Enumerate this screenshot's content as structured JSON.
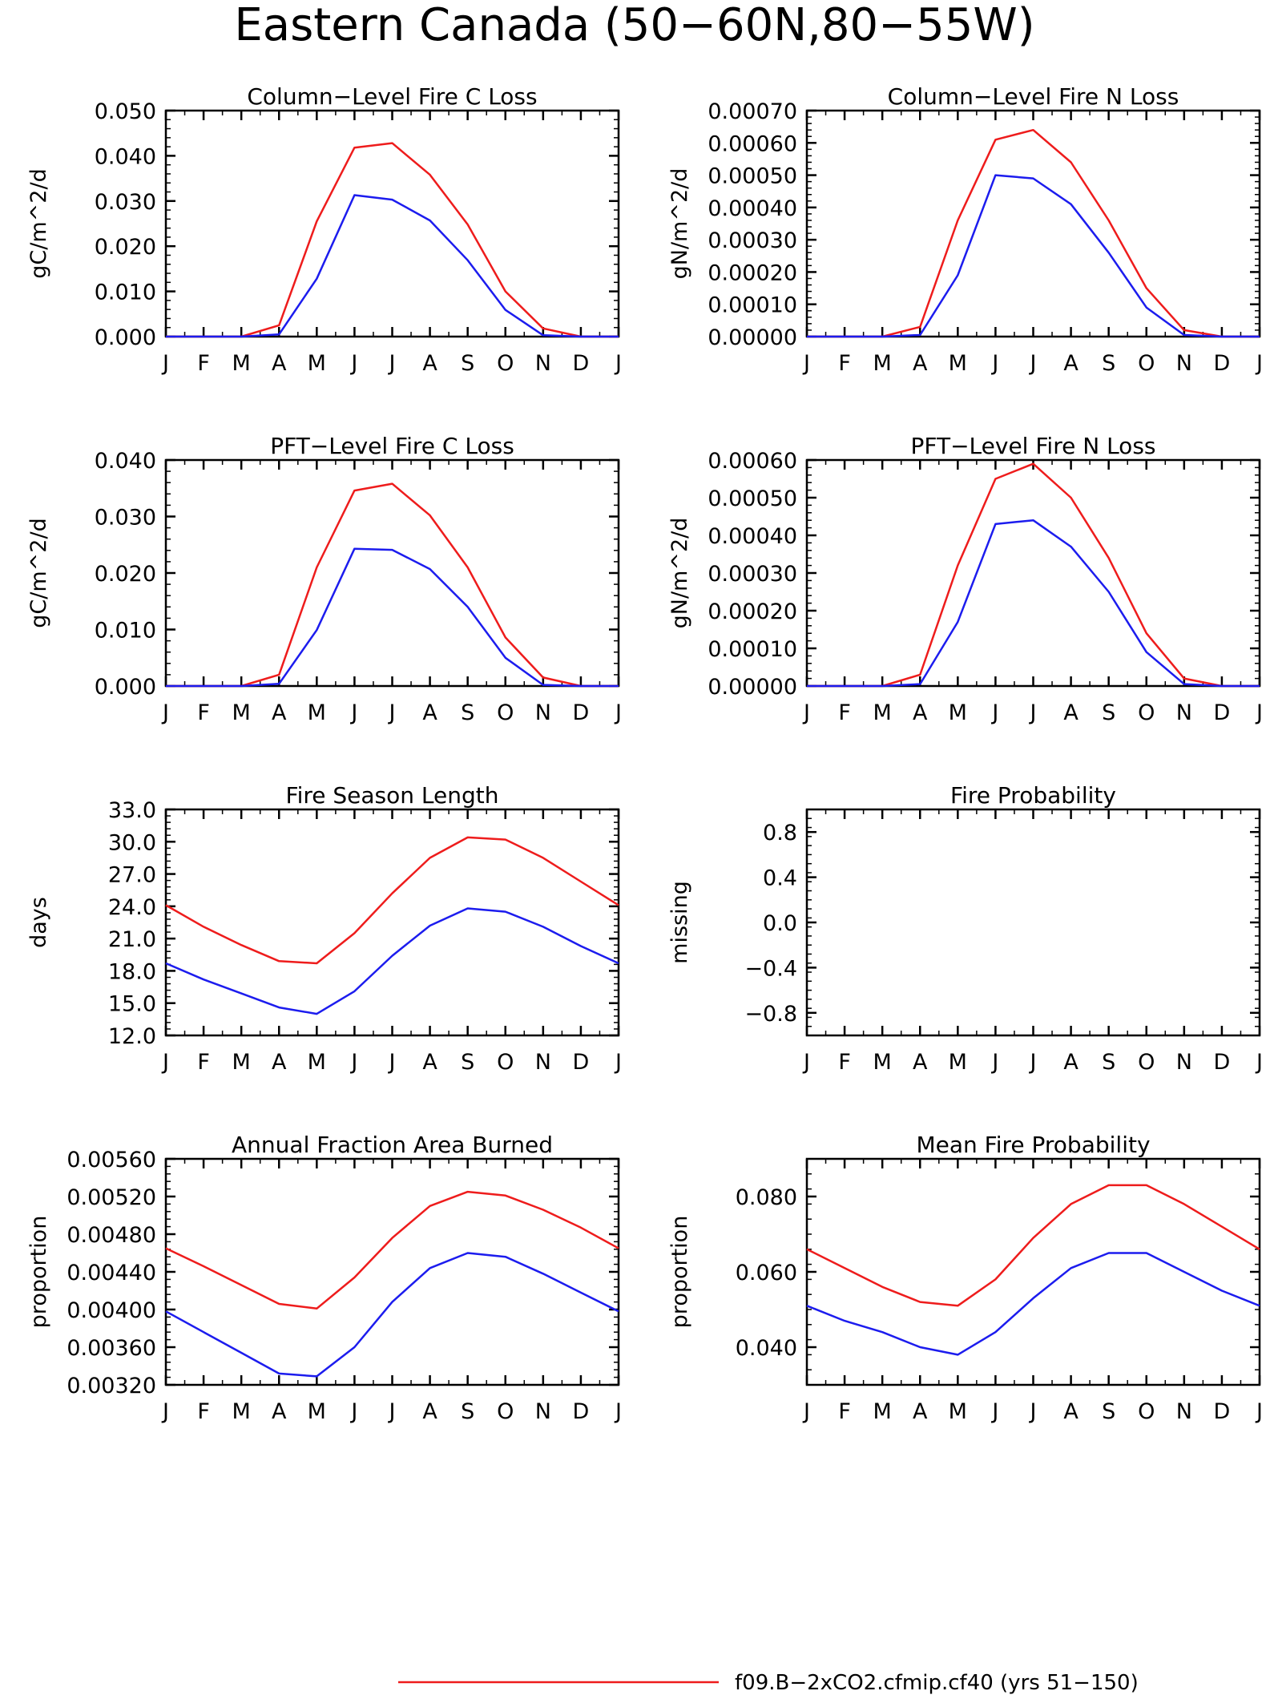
{
  "page_title": "Eastern Canada (50−60N,80−55W)",
  "legend": {
    "label": "f09.B−2xCO2.cfmip.cf40 (yrs 51−150)",
    "color": "#ee1c1c"
  },
  "series_colors": {
    "red": "#ee1c1c",
    "blue": "#1c1cee"
  },
  "chart_data": [
    {
      "type": "line",
      "title": "Column−Level Fire C Loss",
      "ylabel": "gC/m^2/d",
      "categories": [
        "J",
        "F",
        "M",
        "A",
        "M",
        "J",
        "J",
        "A",
        "S",
        "O",
        "N",
        "D",
        "J"
      ],
      "ylim": [
        0,
        0.05
      ],
      "yticks": [
        "0.000",
        "0.010",
        "0.020",
        "0.030",
        "0.040",
        "0.050"
      ],
      "ytick_values": [
        0,
        0.01,
        0.02,
        0.03,
        0.04,
        0.05
      ],
      "series": [
        {
          "color": "red",
          "values": [
            0,
            0,
            0,
            0.0025,
            0.0255,
            0.0418,
            0.0428,
            0.0358,
            0.0248,
            0.01,
            0.0018,
            0,
            0
          ]
        },
        {
          "color": "blue",
          "values": [
            0,
            0,
            0,
            0.0005,
            0.0128,
            0.0313,
            0.0303,
            0.0257,
            0.0169,
            0.0059,
            0.0003,
            0,
            0
          ]
        }
      ]
    },
    {
      "type": "line",
      "title": "Column−Level Fire N Loss",
      "ylabel": "gN/m^2/d",
      "categories": [
        "J",
        "F",
        "M",
        "A",
        "M",
        "J",
        "J",
        "A",
        "S",
        "O",
        "N",
        "D",
        "J"
      ],
      "ylim": [
        0,
        0.0007
      ],
      "yticks": [
        "0.00000",
        "0.00010",
        "0.00020",
        "0.00030",
        "0.00040",
        "0.00050",
        "0.00060",
        "0.00070"
      ],
      "ytick_values": [
        0,
        0.0001,
        0.0002,
        0.0003,
        0.0004,
        0.0005,
        0.0006,
        0.0007
      ],
      "series": [
        {
          "color": "red",
          "values": [
            0,
            0,
            0,
            3e-05,
            0.00036,
            0.00061,
            0.00064,
            0.00054,
            0.00036,
            0.00015,
            2e-05,
            0,
            0
          ]
        },
        {
          "color": "blue",
          "values": [
            0,
            0,
            0,
            5e-06,
            0.00019,
            0.0005,
            0.00049,
            0.00041,
            0.00026,
            9e-05,
            5e-06,
            0,
            0
          ]
        }
      ]
    },
    {
      "type": "line",
      "title": "PFT−Level Fire C Loss",
      "ylabel": "gC/m^2/d",
      "categories": [
        "J",
        "F",
        "M",
        "A",
        "M",
        "J",
        "J",
        "A",
        "S",
        "O",
        "N",
        "D",
        "J"
      ],
      "ylim": [
        0,
        0.04
      ],
      "yticks": [
        "0.000",
        "0.010",
        "0.020",
        "0.030",
        "0.040"
      ],
      "ytick_values": [
        0,
        0.01,
        0.02,
        0.03,
        0.04
      ],
      "series": [
        {
          "color": "red",
          "values": [
            0,
            0,
            0,
            0.002,
            0.021,
            0.0346,
            0.0358,
            0.0302,
            0.021,
            0.0086,
            0.0015,
            0,
            0
          ]
        },
        {
          "color": "blue",
          "values": [
            0,
            0,
            0,
            0.0004,
            0.0099,
            0.0243,
            0.0241,
            0.0207,
            0.014,
            0.005,
            0.0002,
            0,
            0
          ]
        }
      ]
    },
    {
      "type": "line",
      "title": "PFT−Level Fire N Loss",
      "ylabel": "gN/m^2/d",
      "categories": [
        "J",
        "F",
        "M",
        "A",
        "M",
        "J",
        "J",
        "A",
        "S",
        "O",
        "N",
        "D",
        "J"
      ],
      "ylim": [
        0,
        0.0006
      ],
      "yticks": [
        "0.00000",
        "0.00010",
        "0.00020",
        "0.00030",
        "0.00040",
        "0.00050",
        "0.00060"
      ],
      "ytick_values": [
        0,
        0.0001,
        0.0002,
        0.0003,
        0.0004,
        0.0005,
        0.0006
      ],
      "series": [
        {
          "color": "red",
          "values": [
            0,
            0,
            0,
            3e-05,
            0.00032,
            0.00055,
            0.00059,
            0.0005,
            0.00034,
            0.00014,
            2e-05,
            0,
            0
          ]
        },
        {
          "color": "blue",
          "values": [
            0,
            0,
            0,
            5e-06,
            0.00017,
            0.00043,
            0.00044,
            0.00037,
            0.00025,
            9e-05,
            5e-06,
            0,
            0
          ]
        }
      ]
    },
    {
      "type": "line",
      "title": "Fire Season Length",
      "ylabel": "days",
      "categories": [
        "J",
        "F",
        "M",
        "A",
        "M",
        "J",
        "J",
        "A",
        "S",
        "O",
        "N",
        "D",
        "J"
      ],
      "ylim": [
        12,
        33
      ],
      "yticks": [
        "12.0",
        "15.0",
        "18.0",
        "21.0",
        "24.0",
        "27.0",
        "30.0",
        "33.0"
      ],
      "ytick_values": [
        12,
        15,
        18,
        21,
        24,
        27,
        30,
        33
      ],
      "series": [
        {
          "color": "red",
          "values": [
            24.1,
            22.1,
            20.4,
            18.9,
            18.7,
            21.5,
            25.2,
            28.5,
            30.4,
            30.2,
            28.5,
            26.3,
            24.1
          ]
        },
        {
          "color": "blue",
          "values": [
            18.7,
            17.2,
            15.9,
            14.6,
            14.0,
            16.1,
            19.4,
            22.2,
            23.8,
            23.5,
            22.1,
            20.3,
            18.7
          ]
        }
      ]
    },
    {
      "type": "line",
      "title": "Fire Probability",
      "ylabel": "missing",
      "categories": [
        "J",
        "F",
        "M",
        "A",
        "M",
        "J",
        "J",
        "A",
        "S",
        "O",
        "N",
        "D",
        "J"
      ],
      "ylim": [
        -1,
        1
      ],
      "yticks": [
        "−0.8",
        "−0.4",
        "0.0",
        "0.4",
        "0.8"
      ],
      "ytick_values": [
        -0.8,
        -0.4,
        0,
        0.4,
        0.8
      ],
      "series": []
    },
    {
      "type": "line",
      "title": "Annual Fraction Area Burned",
      "ylabel": "proportion",
      "categories": [
        "J",
        "F",
        "M",
        "A",
        "M",
        "J",
        "J",
        "A",
        "S",
        "O",
        "N",
        "D",
        "J"
      ],
      "ylim": [
        0.0032,
        0.0056
      ],
      "yticks": [
        "0.00320",
        "0.00360",
        "0.00400",
        "0.00440",
        "0.00480",
        "0.00520",
        "0.00560"
      ],
      "ytick_values": [
        0.0032,
        0.0036,
        0.004,
        0.0044,
        0.0048,
        0.0052,
        0.0056
      ],
      "series": [
        {
          "color": "red",
          "values": [
            0.00465,
            0.00446,
            0.00426,
            0.00406,
            0.00401,
            0.00434,
            0.00476,
            0.0051,
            0.00525,
            0.00521,
            0.00506,
            0.00487,
            0.00465
          ]
        },
        {
          "color": "blue",
          "values": [
            0.00398,
            0.00376,
            0.00354,
            0.00332,
            0.00329,
            0.0036,
            0.00408,
            0.00444,
            0.0046,
            0.00456,
            0.00438,
            0.00418,
            0.00398
          ]
        }
      ]
    },
    {
      "type": "line",
      "title": "Mean Fire Probability",
      "ylabel": "proportion",
      "categories": [
        "J",
        "F",
        "M",
        "A",
        "M",
        "J",
        "J",
        "A",
        "S",
        "O",
        "N",
        "D",
        "J"
      ],
      "ylim": [
        0.03,
        0.09
      ],
      "yticks": [
        "0.040",
        "0.060",
        "0.080"
      ],
      "ytick_values": [
        0.04,
        0.06,
        0.08
      ],
      "series": [
        {
          "color": "red",
          "values": [
            0.066,
            0.061,
            0.056,
            0.052,
            0.051,
            0.058,
            0.069,
            0.078,
            0.083,
            0.083,
            0.078,
            0.072,
            0.066
          ]
        },
        {
          "color": "blue",
          "values": [
            0.051,
            0.047,
            0.044,
            0.04,
            0.038,
            0.044,
            0.053,
            0.061,
            0.065,
            0.065,
            0.06,
            0.055,
            0.051
          ]
        }
      ]
    }
  ]
}
